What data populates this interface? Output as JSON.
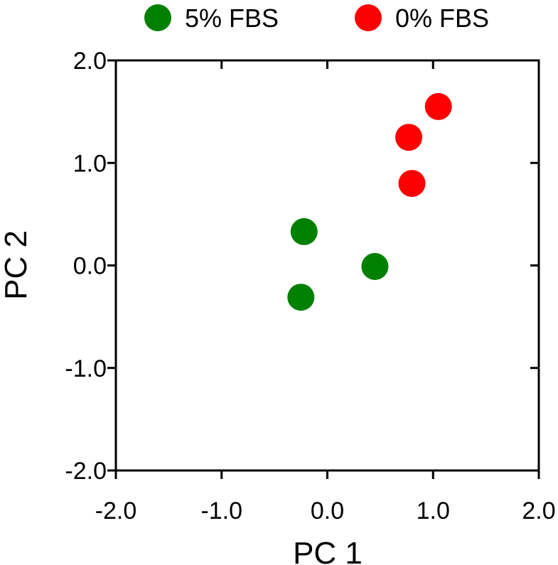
{
  "chart_data": {
    "type": "scatter",
    "title": "",
    "xlabel": "PC 1",
    "ylabel": "PC 2",
    "xlim": [
      -2.0,
      2.0
    ],
    "ylim": [
      -2.0,
      2.0
    ],
    "xticks": [
      "-2.0",
      "-1.0",
      "0.0",
      "1.0",
      "2.0"
    ],
    "yticks": [
      "-2.0",
      "-1.0",
      "0.0",
      "1.0",
      "2.0"
    ],
    "grid": false,
    "legend_position": "top",
    "series": [
      {
        "name": "5% FBS",
        "color": "#008000",
        "points": [
          {
            "x": -0.22,
            "y": 0.33
          },
          {
            "x": 0.45,
            "y": -0.01
          },
          {
            "x": -0.25,
            "y": -0.31
          }
        ]
      },
      {
        "name": "0% FBS",
        "color": "#ff0000",
        "points": [
          {
            "x": 1.05,
            "y": 1.55
          },
          {
            "x": 0.77,
            "y": 1.25
          },
          {
            "x": 0.8,
            "y": 0.8
          }
        ]
      }
    ]
  }
}
